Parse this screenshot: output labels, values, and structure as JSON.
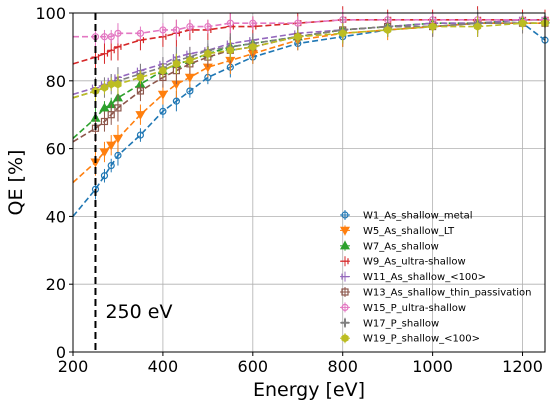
{
  "chart_data": {
    "type": "line",
    "xlabel": "Energy [eV]",
    "ylabel": "QE [%]",
    "xlim": [
      200,
      1250
    ],
    "ylim": [
      0,
      100
    ],
    "xticks": [
      200,
      400,
      600,
      800,
      1000,
      1200
    ],
    "yticks": [
      0,
      20,
      40,
      60,
      80,
      100
    ],
    "grid": true,
    "legend_position": "bottom-right",
    "annotation": {
      "text": "250 eV",
      "x": 250
    },
    "series": [
      {
        "name": "W1_As_shallow_metal",
        "color": "#1f77b4",
        "marker": "circle",
        "x": [
          250,
          270,
          285,
          300,
          350,
          400,
          430,
          460,
          500,
          550,
          600,
          700,
          800,
          900,
          1000,
          1100,
          1200,
          1250
        ],
        "y": [
          48,
          52,
          55,
          58,
          64,
          71,
          74,
          77,
          81,
          84,
          87,
          91,
          93,
          95,
          96,
          97,
          97,
          92
        ]
      },
      {
        "name": "W5_As_shallow_LT",
        "color": "#ff7f0e",
        "marker": "triangle-down",
        "x": [
          250,
          270,
          285,
          300,
          350,
          400,
          430,
          460,
          500,
          550,
          600,
          700,
          800,
          900,
          1000,
          1100,
          1200,
          1250
        ],
        "y": [
          56,
          59,
          61,
          63,
          70,
          76,
          79,
          81,
          84,
          86,
          88,
          92,
          94,
          95,
          96,
          97,
          97,
          97
        ]
      },
      {
        "name": "W7_As_shallow",
        "color": "#2ca02c",
        "marker": "triangle-up",
        "x": [
          250,
          270,
          285,
          300,
          350,
          400,
          430,
          460,
          500,
          550,
          600,
          700,
          800,
          900,
          1000,
          1100,
          1200,
          1250
        ],
        "y": [
          69,
          72,
          73,
          75,
          79,
          83,
          85,
          86,
          88,
          90,
          91,
          93,
          95,
          96,
          97,
          97,
          98,
          98
        ]
      },
      {
        "name": "W9_As_ultra-shallow",
        "color": "#d62728",
        "marker": "tri-left",
        "x": [
          250,
          270,
          285,
          300,
          350,
          400,
          430,
          460,
          500,
          550,
          600,
          700,
          800,
          900,
          1000,
          1100,
          1200,
          1250
        ],
        "y": [
          87,
          88,
          89,
          90,
          92,
          93,
          94,
          95,
          95,
          96,
          96,
          97,
          98,
          98,
          98,
          98,
          98,
          98
        ]
      },
      {
        "name": "W11_As_shallow_<100>",
        "color": "#9467bd",
        "marker": "tri-right",
        "x": [
          250,
          270,
          285,
          300,
          350,
          400,
          430,
          460,
          500,
          550,
          600,
          700,
          800,
          900,
          1000,
          1100,
          1200,
          1250
        ],
        "y": [
          78,
          79,
          80,
          81,
          83,
          85,
          87,
          88,
          89,
          91,
          92,
          94,
          95,
          96,
          97,
          97,
          98,
          98
        ]
      },
      {
        "name": "W13_As_shallow_thin_passivation",
        "color": "#8c564b",
        "marker": "square",
        "x": [
          250,
          270,
          285,
          300,
          350,
          400,
          430,
          460,
          500,
          550,
          600,
          700,
          800,
          900,
          1000,
          1100,
          1200,
          1250
        ],
        "y": [
          66,
          68,
          70,
          72,
          77,
          81,
          83,
          85,
          87,
          89,
          90,
          93,
          95,
          96,
          96,
          97,
          97,
          97
        ]
      },
      {
        "name": "W15_P_ultra-shallow",
        "color": "#e377c2",
        "marker": "circle",
        "x": [
          250,
          270,
          285,
          300,
          350,
          400,
          430,
          460,
          500,
          550,
          600,
          700,
          800,
          900,
          1000,
          1100,
          1200,
          1250
        ],
        "y": [
          93,
          93,
          93,
          94,
          94,
          95,
          95,
          96,
          96,
          97,
          97,
          97,
          98,
          98,
          98,
          98,
          98,
          98
        ]
      },
      {
        "name": "W17_P_shallow",
        "color": "#7f7f7f",
        "marker": "plus",
        "x": [
          250,
          270,
          285,
          300,
          350,
          400,
          430,
          460,
          500,
          550,
          600,
          700,
          800,
          900,
          1000,
          1100,
          1200,
          1250
        ],
        "y": [
          77,
          78,
          79,
          80,
          82,
          84,
          86,
          87,
          89,
          90,
          91,
          93,
          95,
          96,
          96,
          97,
          97,
          97
        ]
      },
      {
        "name": "W19_P_shallow_<100>",
        "color": "#bcbd22",
        "marker": "hexagon",
        "x": [
          250,
          270,
          285,
          300,
          350,
          400,
          430,
          460,
          500,
          550,
          600,
          700,
          800,
          900,
          1000,
          1100,
          1200,
          1250
        ],
        "y": [
          77,
          78,
          79,
          79,
          81,
          83,
          85,
          86,
          88,
          89,
          90,
          93,
          94,
          95,
          96,
          96,
          97,
          97
        ]
      }
    ]
  }
}
